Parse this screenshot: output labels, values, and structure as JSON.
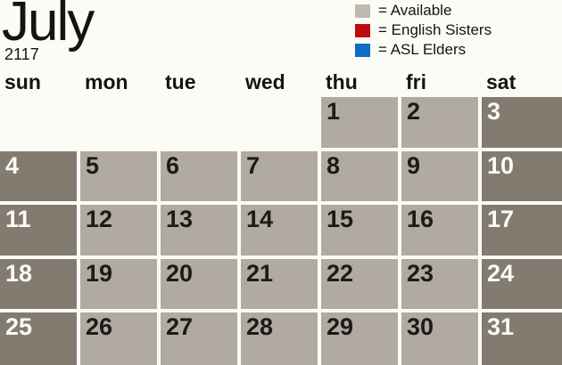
{
  "title": {
    "month": "July",
    "year": "2117"
  },
  "legend": {
    "items": [
      {
        "label": "= Available",
        "color": "#c0b9af"
      },
      {
        "label": "= English Sisters",
        "color": "#c00b0e"
      },
      {
        "label": "= ASL Elders",
        "color": "#0e6cc2"
      }
    ]
  },
  "weekdays": [
    "sun",
    "mon",
    "tue",
    "wed",
    "thu",
    "fri",
    "sat"
  ],
  "calendar": {
    "cells": [
      {
        "day": "",
        "type": "blank"
      },
      {
        "day": "",
        "type": "blank"
      },
      {
        "day": "",
        "type": "blank"
      },
      {
        "day": "",
        "type": "blank"
      },
      {
        "day": "1",
        "type": "available"
      },
      {
        "day": "2",
        "type": "available"
      },
      {
        "day": "3",
        "type": "weekend"
      },
      {
        "day": "4",
        "type": "weekend"
      },
      {
        "day": "5",
        "type": "available"
      },
      {
        "day": "6",
        "type": "available"
      },
      {
        "day": "7",
        "type": "available"
      },
      {
        "day": "8",
        "type": "available"
      },
      {
        "day": "9",
        "type": "available"
      },
      {
        "day": "10",
        "type": "weekend"
      },
      {
        "day": "11",
        "type": "weekend"
      },
      {
        "day": "12",
        "type": "available"
      },
      {
        "day": "13",
        "type": "available"
      },
      {
        "day": "14",
        "type": "available"
      },
      {
        "day": "15",
        "type": "available"
      },
      {
        "day": "16",
        "type": "available"
      },
      {
        "day": "17",
        "type": "weekend"
      },
      {
        "day": "18",
        "type": "weekend"
      },
      {
        "day": "19",
        "type": "available"
      },
      {
        "day": "20",
        "type": "available"
      },
      {
        "day": "21",
        "type": "available"
      },
      {
        "day": "22",
        "type": "available"
      },
      {
        "day": "23",
        "type": "available"
      },
      {
        "day": "24",
        "type": "weekend"
      },
      {
        "day": "25",
        "type": "weekend"
      },
      {
        "day": "26",
        "type": "available"
      },
      {
        "day": "27",
        "type": "available"
      },
      {
        "day": "28",
        "type": "available"
      },
      {
        "day": "29",
        "type": "available"
      },
      {
        "day": "30",
        "type": "available"
      },
      {
        "day": "31",
        "type": "weekend"
      }
    ]
  },
  "colors": {
    "background": "#fcfcf7",
    "available_cell": "#b1aaa0",
    "weekend_cell": "#837b70",
    "english_sisters": "#c00b0e",
    "asl_elders": "#0e6cc2"
  }
}
